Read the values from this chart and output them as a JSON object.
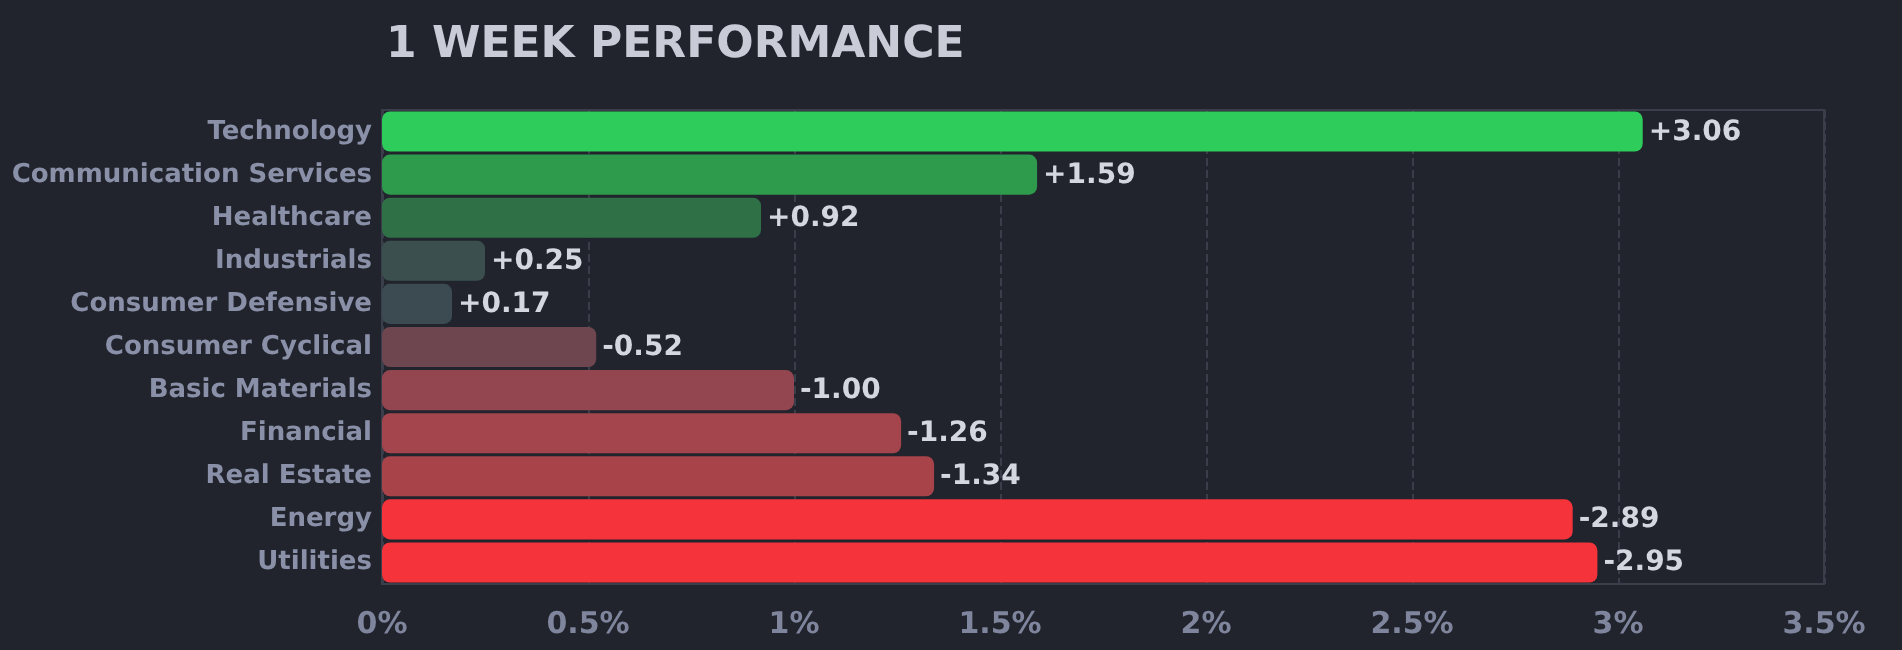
{
  "chart_data": {
    "type": "bar",
    "orientation": "horizontal",
    "title": "1 WEEK PERFORMANCE",
    "categories": [
      "Technology",
      "Communication Services",
      "Healthcare",
      "Industrials",
      "Consumer Defensive",
      "Consumer Cyclical",
      "Basic Materials",
      "Financial",
      "Real Estate",
      "Energy",
      "Utilities"
    ],
    "values": [
      3.06,
      1.59,
      0.92,
      0.25,
      0.17,
      -0.52,
      -1.0,
      -1.26,
      -1.34,
      -2.89,
      -2.95
    ],
    "base": [
      0,
      0,
      0,
      0,
      0,
      0.52,
      1.0,
      1.26,
      1.34,
      2.89,
      2.95
    ],
    "value_labels": [
      "+3.06",
      "+1.59",
      "+0.92",
      "+0.25",
      "+0.17",
      "-0.52",
      "-1.00",
      "-1.26",
      "-1.34",
      "-2.89",
      "-2.95"
    ],
    "colors": [
      "#2ecc5a",
      "#2e9a4c",
      "#2f7046",
      "#3b504e",
      "#3c4a52",
      "#6e4650",
      "#934650",
      "#a4444c",
      "#a8434a",
      "#f5333a",
      "#f5333a"
    ],
    "xlim": [
      0,
      3.5
    ],
    "xticks": [
      {
        "value": 0,
        "label": "0%"
      },
      {
        "value": 0.5,
        "label": "0.5%"
      },
      {
        "value": 1,
        "label": "1%"
      },
      {
        "value": 1.5,
        "label": "1.5%"
      },
      {
        "value": 2,
        "label": "2%"
      },
      {
        "value": 2.5,
        "label": "2.5%"
      },
      {
        "value": 3,
        "label": "3%"
      },
      {
        "value": 3.5,
        "label": "3.5%"
      }
    ],
    "grid": "x"
  }
}
